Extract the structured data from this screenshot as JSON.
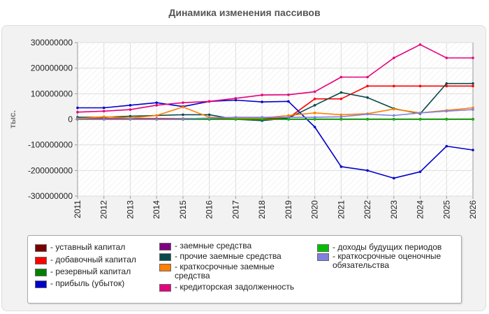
{
  "chart_data": {
    "type": "line",
    "title": "Динамика изменения пассивов",
    "xlabel": "",
    "ylabel": "тыс.",
    "ylim": [
      -300000000,
      300000000
    ],
    "yticks": [
      300000000,
      200000000,
      100000000,
      0,
      -100000000,
      -200000000,
      -300000000
    ],
    "ytick_labels": [
      "300000000",
      "200000000",
      "100000000",
      "0",
      "-100000000",
      "-200000000",
      "-300000000"
    ],
    "categories": [
      "2011",
      "2012",
      "2013",
      "2014",
      "2015",
      "2016",
      "2017",
      "2018",
      "2019",
      "2020",
      "2021",
      "2022",
      "2023",
      "2024",
      "2025",
      "2026"
    ],
    "grid": true,
    "legend_position": "bottom",
    "series": [
      {
        "name": "уставный капитал",
        "color": "#7a0000",
        "values": [
          1000000,
          1000000,
          1000000,
          1000000,
          1000000,
          1000000,
          1000000,
          1000000,
          1000000,
          1000000,
          1000000,
          1000000,
          1000000,
          1000000,
          1000000,
          1000000
        ]
      },
      {
        "name": "добавочный капитал",
        "color": "#ff0000",
        "values": [
          3000000,
          3000000,
          3000000,
          3000000,
          3000000,
          3000000,
          3000000,
          3000000,
          5000000,
          80000000,
          80000000,
          130000000,
          130000000,
          130000000,
          130000000,
          130000000
        ]
      },
      {
        "name": "резервный капитал",
        "color": "#008000",
        "values": [
          0,
          0,
          0,
          0,
          0,
          0,
          0,
          0,
          0,
          0,
          0,
          0,
          0,
          0,
          0,
          0
        ]
      },
      {
        "name": "прибыль (убыток)",
        "color": "#0000cc",
        "values": [
          45000000,
          45000000,
          55000000,
          65000000,
          50000000,
          70000000,
          75000000,
          68000000,
          70000000,
          -30000000,
          -185000000,
          -200000000,
          -230000000,
          -205000000,
          -105000000,
          -120000000
        ]
      },
      {
        "name": "заемные средства",
        "color": "#800080",
        "values": [
          0,
          0,
          0,
          0,
          0,
          0,
          0,
          0,
          0,
          0,
          0,
          0,
          0,
          0,
          0,
          0
        ]
      },
      {
        "name": "прочие заемные средства",
        "color": "#0b4a4a",
        "values": [
          8000000,
          8000000,
          12000000,
          15000000,
          18000000,
          18000000,
          0,
          -5000000,
          5000000,
          55000000,
          105000000,
          85000000,
          42000000,
          22000000,
          140000000,
          140000000
        ]
      },
      {
        "name": "краткосрочные заемные средства",
        "color": "#ff8000",
        "values": [
          3000000,
          10000000,
          5000000,
          15000000,
          48000000,
          8000000,
          5000000,
          5000000,
          15000000,
          25000000,
          18000000,
          22000000,
          40000000,
          25000000,
          35000000,
          45000000
        ]
      },
      {
        "name": "кредиторская задолженность",
        "color": "#e6007e",
        "values": [
          28000000,
          32000000,
          38000000,
          55000000,
          65000000,
          70000000,
          82000000,
          95000000,
          96000000,
          108000000,
          165000000,
          165000000,
          240000000,
          292000000,
          240000000,
          240000000
        ]
      },
      {
        "name": "доходы будущих периодов",
        "color": "#00c000",
        "values": [
          0,
          0,
          0,
          0,
          0,
          0,
          0,
          0,
          0,
          0,
          0,
          0,
          0,
          0,
          0,
          0
        ]
      },
      {
        "name": "краткосрочные оценочные обязательства",
        "color": "#8080e0",
        "values": [
          0,
          0,
          0,
          0,
          2000000,
          5000000,
          8000000,
          8000000,
          8000000,
          8000000,
          10000000,
          20000000,
          15000000,
          25000000,
          32000000,
          38000000
        ]
      }
    ]
  }
}
